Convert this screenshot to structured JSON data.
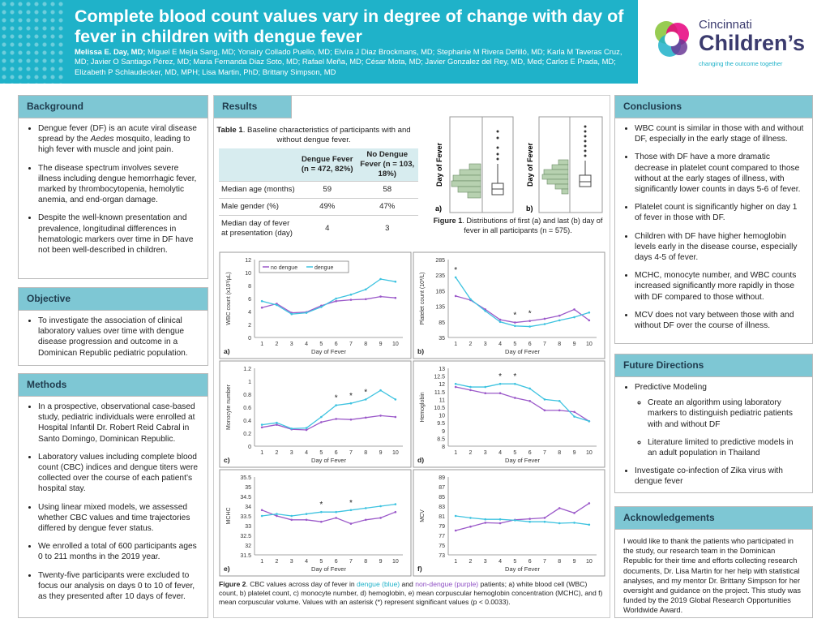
{
  "header": {
    "title": "Complete blood count values vary in degree of change with day of fever in children with dengue fever",
    "authors_lead": "Melissa E. Day, MD;",
    "authors_rest": " Miguel E Mejía Sang, MD; Yonairy Collado Puello, MD; Elvira J Diaz Brockmans, MD; Stephanie M Rivera Defilló, MD; Karla M Taveras Cruz, MD; Javier O Santiago Pérez, MD; Maria Fernanda Diaz Soto, MD; Rafael Meña, MD; César Mota, MD; Javier Gonzalez del Rey, MD, Med; Carlos E Prada, MD; Elizabeth P Schlaudecker, MD, MPH; Lisa Martin, PhD; Brittany Simpson, MD"
  },
  "logo": {
    "top": "Cincinnati",
    "main": "Children’s",
    "tagline": "changing the outcome together"
  },
  "background": {
    "heading": "Background",
    "items": [
      "Dengue fever (DF) is an acute viral disease spread by the Aedes mosquito, leading to high fever with muscle and joint pain.",
      "The disease spectrum involves severe illness including dengue hemorrhagic fever, marked by thrombocytopenia, hemolytic anemia, and end-organ damage.",
      "Despite the well-known presentation and prevalence, longitudinal differences in hematologic markers over time in DF have not been well-described in children."
    ]
  },
  "objective": {
    "heading": "Objective",
    "items": [
      "To investigate the association of clinical laboratory values over time with dengue disease progression and outcome in a Dominican Republic pediatric population."
    ]
  },
  "methods": {
    "heading": "Methods",
    "items": [
      "In a prospective, observational case-based study, pediatric individuals were enrolled at Hospital Infantil Dr. Robert Reid Cabral in Santo Domingo, Dominican Republic.",
      "Laboratory values including complete blood count (CBC) indices and dengue titers were collected over the course of each patient’s hospital stay.",
      "Using linear mixed models, we assessed whether CBC values and time trajectories differed by dengue fever status.",
      "We enrolled a total of 600 participants ages 0 to 211 months in the 2019 year.",
      "Twenty-five participants were excluded to focus our analysis on days 0 to 10 of fever, as they presented after 10 days of fever."
    ]
  },
  "results": {
    "heading": "Results",
    "table_caption_bold": "Table 1",
    "table_caption_rest": ". Baseline characteristics of participants with and without dengue fever.",
    "table_headers": [
      "",
      "Dengue Fever (n = 472, 82%)",
      "No Dengue Fever (n = 103, 18%)"
    ],
    "table_rows": [
      [
        "Median age (months)",
        "59",
        "58"
      ],
      [
        "Male gender (%)",
        "49%",
        "47%"
      ],
      [
        "Median day of fever at presentation (day)",
        "4",
        "3"
      ]
    ],
    "fig1_caption_bold": "Figure 1",
    "fig1_caption_rest": ". Distributions of first (a) and last (b) day of fever in all participants (n = 575).",
    "fig1_ylabel": "Day of Fever",
    "fig1_a": "a)",
    "fig1_b": "b)",
    "fig2_caption_bold": "Figure 2",
    "fig2_caption_p1": ". CBC values across day of fever in ",
    "fig2_dengue": "dengue (blue)",
    "fig2_and": " and ",
    "fig2_nodengue": "non-dengue (purple)",
    "fig2_caption_p2": " patients; a) white blood cell (WBC) count, b) platelet count, c) monocyte number, d) hemoglobin, e) mean corpuscular hemoglobin concentration (MCHC), and f) mean corpuscular volume. Values with an asterisk (*) represent significant values (p < 0.0033)."
  },
  "conclusions": {
    "heading": "Conclusions",
    "items": [
      "WBC count is similar in those with and without DF, especially in the early stage of illness.",
      "Those with DF have a more dramatic decrease in platelet count compared to those without at the early stages of illness, with significantly lower counts in days 5-6 of fever.",
      "Platelet count is significantly higher on day 1 of fever in those with DF.",
      "Children with DF have higher hemoglobin levels early in the disease course, especially days 4-5 of fever.",
      "MCHC, monocyte number, and WBC counts increased significantly more rapidly in those with DF compared to those without.",
      "MCV does not vary between those with and without DF over the course of illness."
    ]
  },
  "future": {
    "heading": "Future Directions",
    "item1": "Predictive Modeling",
    "sub": [
      "Create an algorithm using laboratory markers to distinguish pediatric patients with and without DF",
      "Literature limited to predictive models in an adult population in Thailand"
    ],
    "item2": "Investigate co-infection of Zika virus with dengue fever"
  },
  "ack": {
    "heading": "Acknowledgements",
    "text": "I would like to thank the patients who participated in the study, our research team in the Dominican Republic for their time and efforts collecting research documents, Dr. Lisa Martin for her help with statistical analyses, and my mentor Dr. Brittany Simpson for her oversight and guidance on the project. This study was funded by the 2019 Global Research Opportunities Worldwide Award."
  },
  "colors": {
    "dengue": "#3ec3e0",
    "no_dengue": "#9b59c9",
    "accent": "#1fb2c9",
    "panel_head": "#7ec7d4"
  },
  "chart_data": [
    {
      "id": "a",
      "type": "line",
      "panel_label": "a)",
      "xlabel": "Day of Fever",
      "ylabel": "WBC count (x10³/µL)",
      "x": [
        1,
        2,
        3,
        4,
        5,
        6,
        7,
        8,
        9,
        10
      ],
      "ylim": [
        0,
        12
      ],
      "yticks": [
        0,
        2,
        4,
        6,
        8,
        10,
        12
      ],
      "legend": [
        "no dengue",
        "dengue"
      ],
      "series": [
        {
          "name": "no dengue",
          "values": [
            4.6,
            5.2,
            3.8,
            3.9,
            4.9,
            5.6,
            5.8,
            5.9,
            6.3,
            6.1
          ]
        },
        {
          "name": "dengue",
          "values": [
            5.6,
            5.0,
            3.6,
            3.8,
            4.7,
            6.0,
            6.6,
            7.4,
            9.0,
            8.6
          ]
        }
      ],
      "sig": []
    },
    {
      "id": "b",
      "type": "line",
      "panel_label": "b)",
      "xlabel": "Day of Fever",
      "ylabel": "Platelet count (10³/L)",
      "x": [
        1,
        2,
        3,
        4,
        5,
        6,
        7,
        8,
        9,
        10
      ],
      "ylim": [
        35,
        285
      ],
      "yticks": [
        35,
        85,
        135,
        185,
        235,
        285
      ],
      "series": [
        {
          "name": "no dengue",
          "values": [
            168,
            155,
            125,
            92,
            83,
            88,
            95,
            105,
            125,
            90
          ]
        },
        {
          "name": "dengue",
          "values": [
            228,
            158,
            120,
            85,
            72,
            70,
            78,
            90,
            100,
            115
          ]
        }
      ],
      "sig": [
        1,
        5,
        6
      ]
    },
    {
      "id": "c",
      "type": "line",
      "panel_label": "c)",
      "xlabel": "Day of Fever",
      "ylabel": "Monocyte number",
      "x": [
        1,
        2,
        3,
        4,
        5,
        6,
        7,
        8,
        9,
        10
      ],
      "ylim": [
        0,
        1.2
      ],
      "yticks": [
        0,
        0.2,
        0.4,
        0.6,
        0.8,
        1,
        1.2
      ],
      "series": [
        {
          "name": "no dengue",
          "values": [
            0.29,
            0.33,
            0.26,
            0.25,
            0.37,
            0.42,
            0.41,
            0.44,
            0.47,
            0.45
          ]
        },
        {
          "name": "dengue",
          "values": [
            0.33,
            0.36,
            0.27,
            0.28,
            0.45,
            0.63,
            0.66,
            0.72,
            0.86,
            0.72
          ]
        }
      ],
      "sig": [
        6,
        7,
        8
      ]
    },
    {
      "id": "d",
      "type": "line",
      "panel_label": "d)",
      "xlabel": "Day of Fever",
      "ylabel": "Hemoglobin",
      "x": [
        1,
        2,
        3,
        4,
        5,
        6,
        7,
        8,
        9,
        10
      ],
      "ylim": [
        8,
        13
      ],
      "yticks": [
        8,
        8.5,
        9,
        9.5,
        10,
        10.5,
        11,
        11.5,
        12,
        12.5,
        13
      ],
      "series": [
        {
          "name": "no dengue",
          "values": [
            11.8,
            11.6,
            11.4,
            11.4,
            11.1,
            10.9,
            10.3,
            10.3,
            10.2,
            9.6
          ]
        },
        {
          "name": "dengue",
          "values": [
            12.0,
            11.8,
            11.8,
            12.0,
            12.0,
            11.7,
            11.0,
            10.9,
            9.9,
            9.6
          ]
        }
      ],
      "sig": [
        4,
        5
      ]
    },
    {
      "id": "e",
      "type": "line",
      "panel_label": "e)",
      "xlabel": "Day of Fever",
      "ylabel": "MCHC",
      "x": [
        1,
        2,
        3,
        4,
        5,
        6,
        7,
        8,
        9,
        10
      ],
      "ylim": [
        31.5,
        35.5
      ],
      "yticks": [
        31.5,
        32,
        32.5,
        33,
        33.5,
        34,
        34.5,
        35,
        35.5
      ],
      "series": [
        {
          "name": "no dengue",
          "values": [
            33.8,
            33.5,
            33.3,
            33.3,
            33.2,
            33.4,
            33.1,
            33.3,
            33.4,
            33.7
          ]
        },
        {
          "name": "dengue",
          "values": [
            33.5,
            33.6,
            33.5,
            33.6,
            33.7,
            33.7,
            33.8,
            33.9,
            34.0,
            34.1
          ]
        }
      ],
      "sig": [
        5,
        7
      ]
    },
    {
      "id": "f",
      "type": "line",
      "panel_label": "f)",
      "xlabel": "Day of Fever",
      "ylabel": "MCV",
      "x": [
        1,
        2,
        3,
        4,
        5,
        6,
        7,
        8,
        9,
        10
      ],
      "ylim": [
        73,
        89
      ],
      "yticks": [
        73,
        75,
        77,
        79,
        81,
        83,
        85,
        87,
        89
      ],
      "series": [
        {
          "name": "no dengue",
          "values": [
            78.0,
            78.8,
            79.6,
            79.5,
            80.2,
            80.4,
            80.6,
            82.6,
            81.6,
            83.6
          ]
        },
        {
          "name": "dengue",
          "values": [
            81.0,
            80.6,
            80.3,
            80.3,
            80.1,
            79.8,
            79.8,
            79.5,
            79.6,
            79.2
          ]
        }
      ],
      "sig": []
    }
  ]
}
